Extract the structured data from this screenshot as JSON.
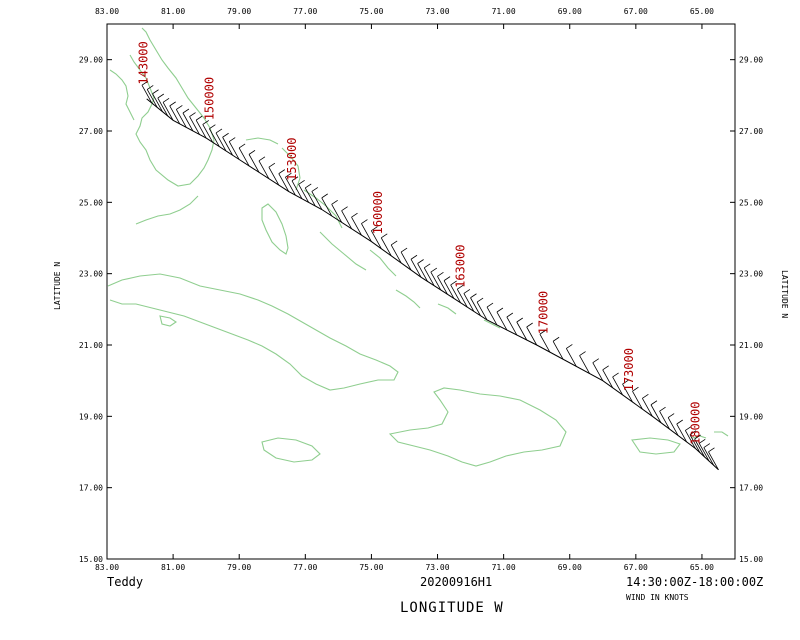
{
  "storm_name": "Teddy",
  "mission_id": "20200916H1",
  "time_range": "14:30:00Z-18:00:00Z",
  "wind_units": "WIND IN KNOTS",
  "x_axis_title": "LONGITUDE   W",
  "y_axis_title": "LATITUDE   N",
  "colors": {
    "coastline": "#8fce8f",
    "track": "#000000",
    "time_labels": "#b00000",
    "axes": "#000000"
  },
  "chart_data": {
    "type": "line",
    "title": "",
    "xlabel": "LONGITUDE   W",
    "ylabel": "LATITUDE   N",
    "xlim": [
      83,
      64
    ],
    "ylim": [
      15,
      30
    ],
    "x_ticks": [
      "83.00",
      "81.00",
      "79.00",
      "77.00",
      "75.00",
      "73.00",
      "71.00",
      "69.00",
      "67.00",
      "65.00"
    ],
    "y_ticks": [
      "29.00",
      "27.00",
      "25.00",
      "23.00",
      "21.00",
      "19.00",
      "17.00",
      "15.00"
    ],
    "x_tick_values": [
      83,
      81,
      79,
      77,
      75,
      73,
      71,
      69,
      67,
      65
    ],
    "y_tick_values": [
      29,
      27,
      25,
      23,
      21,
      19,
      17,
      15
    ],
    "track": [
      {
        "lon": 64.5,
        "lat": 17.5
      },
      {
        "lon": 65.2,
        "lat": 18.1
      },
      {
        "lon": 66.5,
        "lat": 19.0
      },
      {
        "lon": 68.0,
        "lat": 20.0
      },
      {
        "lon": 70.0,
        "lat": 21.0
      },
      {
        "lon": 71.5,
        "lat": 21.7
      },
      {
        "lon": 72.5,
        "lat": 22.3
      },
      {
        "lon": 73.5,
        "lat": 22.9
      },
      {
        "lon": 75.0,
        "lat": 23.9
      },
      {
        "lon": 76.5,
        "lat": 24.8
      },
      {
        "lon": 77.5,
        "lat": 25.3
      },
      {
        "lon": 79.0,
        "lat": 26.2
      },
      {
        "lon": 80.0,
        "lat": 26.8
      },
      {
        "lon": 81.0,
        "lat": 27.3
      },
      {
        "lon": 81.8,
        "lat": 27.9
      }
    ],
    "time_labels": [
      {
        "text": "143000",
        "lon": 81.9,
        "lat": 28.3
      },
      {
        "text": "150000",
        "lon": 79.9,
        "lat": 27.3
      },
      {
        "text": "153000",
        "lon": 77.4,
        "lat": 25.6
      },
      {
        "text": "160000",
        "lon": 74.8,
        "lat": 24.1
      },
      {
        "text": "163000",
        "lon": 72.3,
        "lat": 22.6
      },
      {
        "text": "170000",
        "lon": 69.8,
        "lat": 21.3
      },
      {
        "text": "173000",
        "lon": 67.2,
        "lat": 19.7
      },
      {
        "text": "180000",
        "lon": 65.2,
        "lat": 18.2
      }
    ]
  }
}
